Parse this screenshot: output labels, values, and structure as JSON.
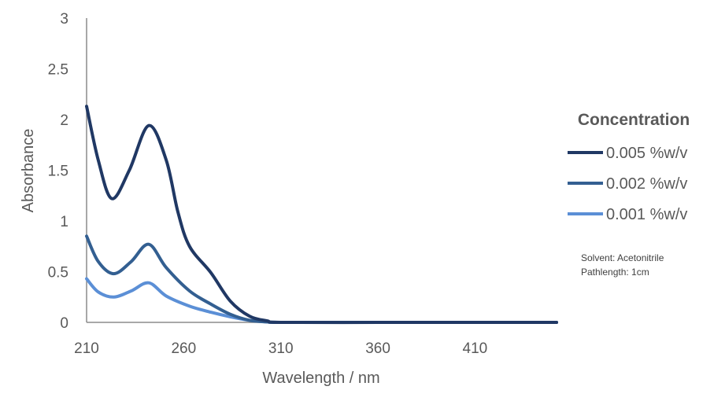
{
  "chart_data": {
    "type": "line",
    "title": "",
    "xlabel": "Wavelength / nm",
    "ylabel": "Absorbance",
    "xlim": [
      210,
      452
    ],
    "ylim": [
      0,
      3
    ],
    "xticks": [
      "210",
      "260",
      "310",
      "360",
      "410"
    ],
    "yticks": [
      "0",
      "0.5",
      "1",
      "1.5",
      "2",
      "2.5",
      "3"
    ],
    "grid": false,
    "legend": {
      "title": "Concentration",
      "placement": "right"
    },
    "annotations": [
      "Solvent: Acetonitrile",
      "Pathlength: 1cm"
    ],
    "series": [
      {
        "name": "0.005 %w/v",
        "color": "#203864",
        "x": [
          210,
          216,
          223,
          232,
          242,
          251,
          257,
          263,
          274,
          284,
          294,
          303,
          310,
          360,
          410,
          452
        ],
        "y": [
          2.13,
          1.6,
          1.22,
          1.5,
          1.94,
          1.6,
          1.09,
          0.75,
          0.49,
          0.21,
          0.06,
          0.015,
          0.0,
          0.0,
          0.0,
          0.0
        ]
      },
      {
        "name": "0.002 %w/v",
        "color": "#335f91",
        "x": [
          210,
          216,
          224,
          233,
          242,
          251,
          263,
          274,
          284,
          294,
          303,
          310,
          360,
          410,
          452
        ],
        "y": [
          0.85,
          0.6,
          0.48,
          0.6,
          0.77,
          0.54,
          0.31,
          0.18,
          0.08,
          0.02,
          0.005,
          0.0,
          0.0,
          0.0,
          0.0
        ]
      },
      {
        "name": "0.001 %w/v",
        "color": "#5b8fd6",
        "x": [
          210,
          216,
          224,
          233,
          242,
          251,
          263,
          274,
          284,
          294,
          303,
          310,
          360,
          410,
          452
        ],
        "y": [
          0.43,
          0.3,
          0.25,
          0.31,
          0.39,
          0.26,
          0.16,
          0.1,
          0.055,
          0.02,
          0.005,
          0.0,
          0.0,
          0.0,
          0.0
        ]
      }
    ]
  }
}
